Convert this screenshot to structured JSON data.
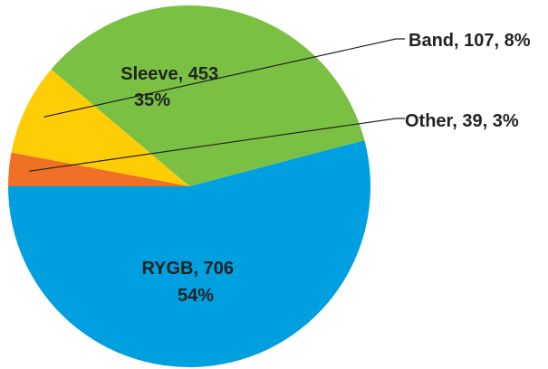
{
  "chart_data": {
    "type": "pie",
    "title": "",
    "slices": [
      {
        "name": "RYGB",
        "value": 706,
        "percent": "54%",
        "color": "#009fdf",
        "label_line1": "RYGB, 706",
        "label_line2": "54%"
      },
      {
        "name": "Sleeve",
        "value": 453,
        "percent": "35%",
        "color": "#7ac143",
        "label_line1": "Sleeve, 453",
        "label_line2": "35%"
      },
      {
        "name": "Band",
        "value": 107,
        "percent": "8%",
        "color": "#ffcd05",
        "label_line1": "Band, 107, 8%"
      },
      {
        "name": "Other",
        "value": 39,
        "percent": "3%",
        "color": "#f07125",
        "label_line1": "Other, 39, 3%"
      }
    ],
    "legend": "none"
  }
}
